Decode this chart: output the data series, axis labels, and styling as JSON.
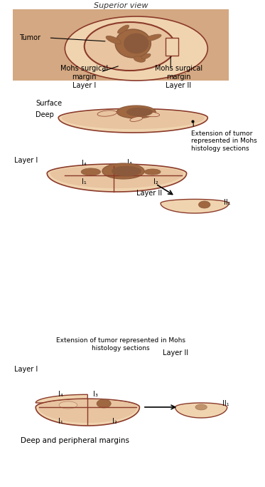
{
  "title": "Superior view",
  "background_color": "#ffffff",
  "skin_color": "#d4956a",
  "skin_light": "#e8c4a0",
  "skin_lighter": "#f0d4b0",
  "skin_bg": "#dba882",
  "tumor_dark": "#8b5a3c",
  "tumor_med": "#a06840",
  "outline_color": "#8b3a2a",
  "arrow_color": "#000000",
  "text_color": "#000000",
  "label_color": "#333333",
  "rect_bg": "#c8906a",
  "labels": {
    "superior_view": "Superior view",
    "tumor": "Tumor",
    "mohs_margin_layer1": "Mohs surgical\nmargin\nLayer I",
    "mohs_margin_layer2": "Mohs surgical\nmargin\nLayer II",
    "surface": "Surface",
    "deep": "Deep",
    "extension": "Extension of tumor\nrepresented in Mohs\nhistology sections",
    "layer1": "Layer I",
    "layer2": "Layer II",
    "layer1b": "Layer I",
    "layer2b": "Layer II",
    "extension2": "Extension of tumor represented in Mohs\nhistology sections",
    "deep_peripheral": "Deep and peripheral margins",
    "I1": "I₁",
    "I2": "I₂",
    "I3": "I₃",
    "I4": "I₄",
    "II1": "II₁",
    "II1b": "II₁"
  }
}
